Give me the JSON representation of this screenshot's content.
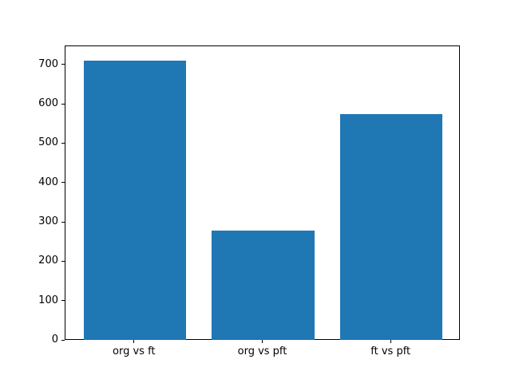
{
  "chart_data": {
    "type": "bar",
    "title": "",
    "xlabel": "",
    "ylabel": "",
    "categories": [
      "org vs ft",
      "org vs pft",
      "ft vs pft"
    ],
    "values": [
      712,
      280,
      575
    ],
    "bar_color": "#1f77b4",
    "ylim": [
      0,
      748
    ],
    "yticks": [
      0,
      100,
      200,
      300,
      400,
      500,
      600,
      700
    ],
    "grid": false,
    "legend": false,
    "background_color": "#ffffff",
    "spine_color": "#000000",
    "bar_width_fraction": 0.8,
    "x_margin_fraction": 0.14
  }
}
